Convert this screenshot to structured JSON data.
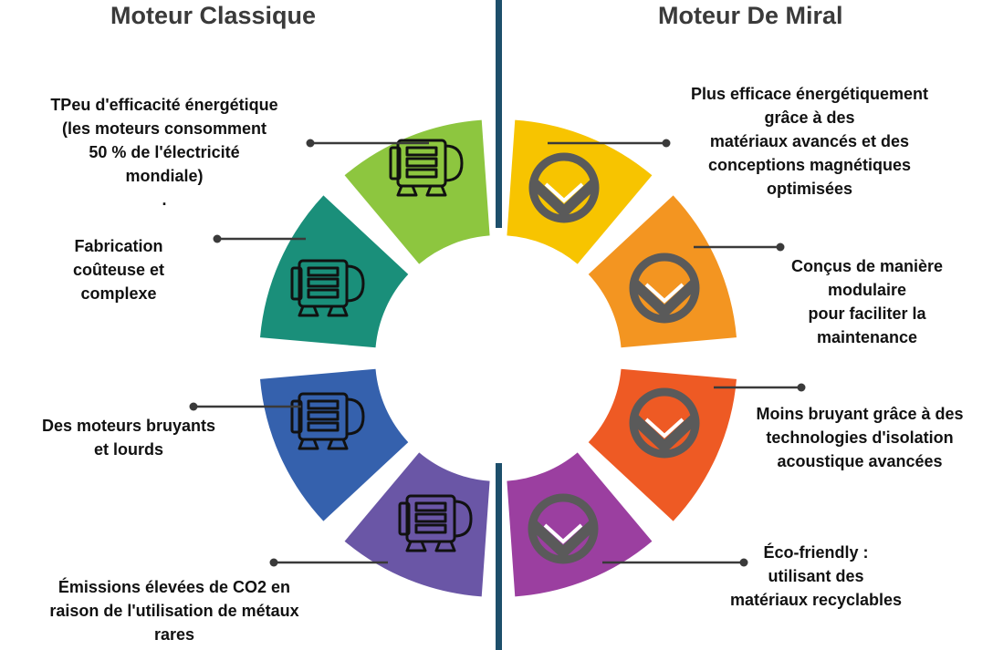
{
  "headers": {
    "left": "Moteur Classique",
    "right": "Moteur De Miral"
  },
  "classic": [
    {
      "text": "TPeu d'efficacité énergétique\n(les moteurs consomment\n50 % de l'électricité\nmondiale)\n.",
      "color": "#8dc63f",
      "icon": "motor-icon"
    },
    {
      "text": "Fabrication\ncoûteuse et\ncomplexe",
      "color": "#1a8f7a",
      "icon": "motor-icon"
    },
    {
      "text": "Des moteurs bruyants\net lourds",
      "color": "#3561ad",
      "icon": "motor-icon"
    },
    {
      "text": "Émissions élevées de CO2 en\nraison de l'utilisation de métaux\nrares",
      "color": "#6a56a6",
      "icon": "motor-icon"
    }
  ],
  "miral": [
    {
      "text": "Plus efficace énergétiquement\ngrâce à des\nmatériaux avancés et des\nconceptions magnétiques\noptimisées",
      "color": "#f7c400",
      "icon": "miral-logo-icon"
    },
    {
      "text": "Conçus de manière\nmodulaire\npour faciliter la\nmaintenance",
      "color": "#f39521",
      "icon": "miral-logo-icon"
    },
    {
      "text": "Moins bruyant grâce à des\ntechnologies d'isolation\nacoustique avancées",
      "color": "#ee5a24",
      "icon": "miral-logo-icon"
    },
    {
      "text": "Éco-friendly :\nutilisant des\nmatériaux recyclables",
      "color": "#9b3fa0",
      "icon": "miral-logo-icon"
    }
  ],
  "colors": {
    "divider": "#1d4f6b",
    "connector": "#3a3a3a",
    "logo": "#5a5a5a",
    "motor_stroke": "#111111"
  }
}
